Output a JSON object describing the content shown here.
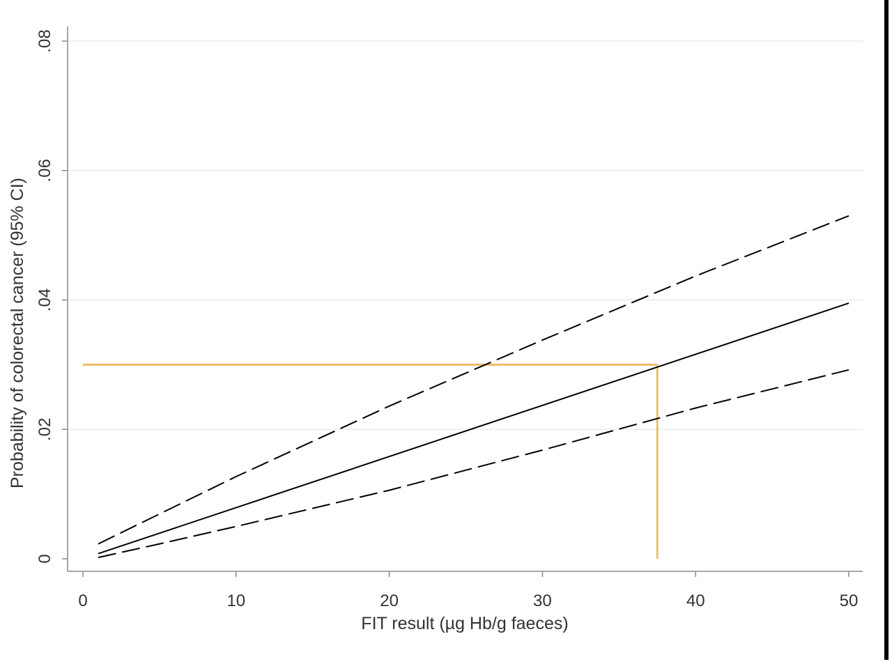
{
  "chart_data": {
    "type": "line",
    "xlabel": "FIT result (µg Hb/g faeces)",
    "ylabel": "Probability of colorectal cancer (95% CI)",
    "xlim": [
      0,
      50
    ],
    "ylim": [
      0,
      0.08
    ],
    "x_ticks": [
      {
        "value": 0,
        "label": "0"
      },
      {
        "value": 10,
        "label": "10"
      },
      {
        "value": 20,
        "label": "20"
      },
      {
        "value": 30,
        "label": "30"
      },
      {
        "value": 40,
        "label": "40"
      },
      {
        "value": 50,
        "label": "50"
      }
    ],
    "y_ticks": [
      {
        "value": 0,
        "label": "0"
      },
      {
        "value": 0.02,
        "label": ".02"
      },
      {
        "value": 0.04,
        "label": ".04"
      },
      {
        "value": 0.06,
        "label": ".06"
      },
      {
        "value": 0.08,
        "label": ".08"
      }
    ],
    "grid": {
      "horizontal": true,
      "vertical": false
    },
    "series": [
      {
        "role": "estimate",
        "style": "solid",
        "color": "#000000",
        "x": [
          1,
          50
        ],
        "y": [
          0.0008,
          0.0395
        ]
      },
      {
        "role": "upper-ci",
        "style": "dashed",
        "color": "#000000",
        "x": [
          1,
          10,
          20,
          30,
          40,
          50
        ],
        "y": [
          0.0023,
          0.0127,
          0.0236,
          0.0338,
          0.0437,
          0.053
        ]
      },
      {
        "role": "lower-ci",
        "style": "dashed",
        "color": "#000000",
        "x": [
          1,
          5,
          10,
          20,
          30,
          40,
          50
        ],
        "y": [
          0.0002,
          0.0023,
          0.005,
          0.0106,
          0.0168,
          0.0233,
          0.0292
        ]
      }
    ],
    "reference_lines": [
      {
        "orientation": "horizontal",
        "y": 0.03,
        "x_from": 0,
        "x_to": 37.5,
        "color": "#f0b964"
      },
      {
        "orientation": "vertical",
        "x": 37.5,
        "y_from": 0,
        "y_to": 0.03,
        "color": "#e8c070"
      }
    ]
  }
}
